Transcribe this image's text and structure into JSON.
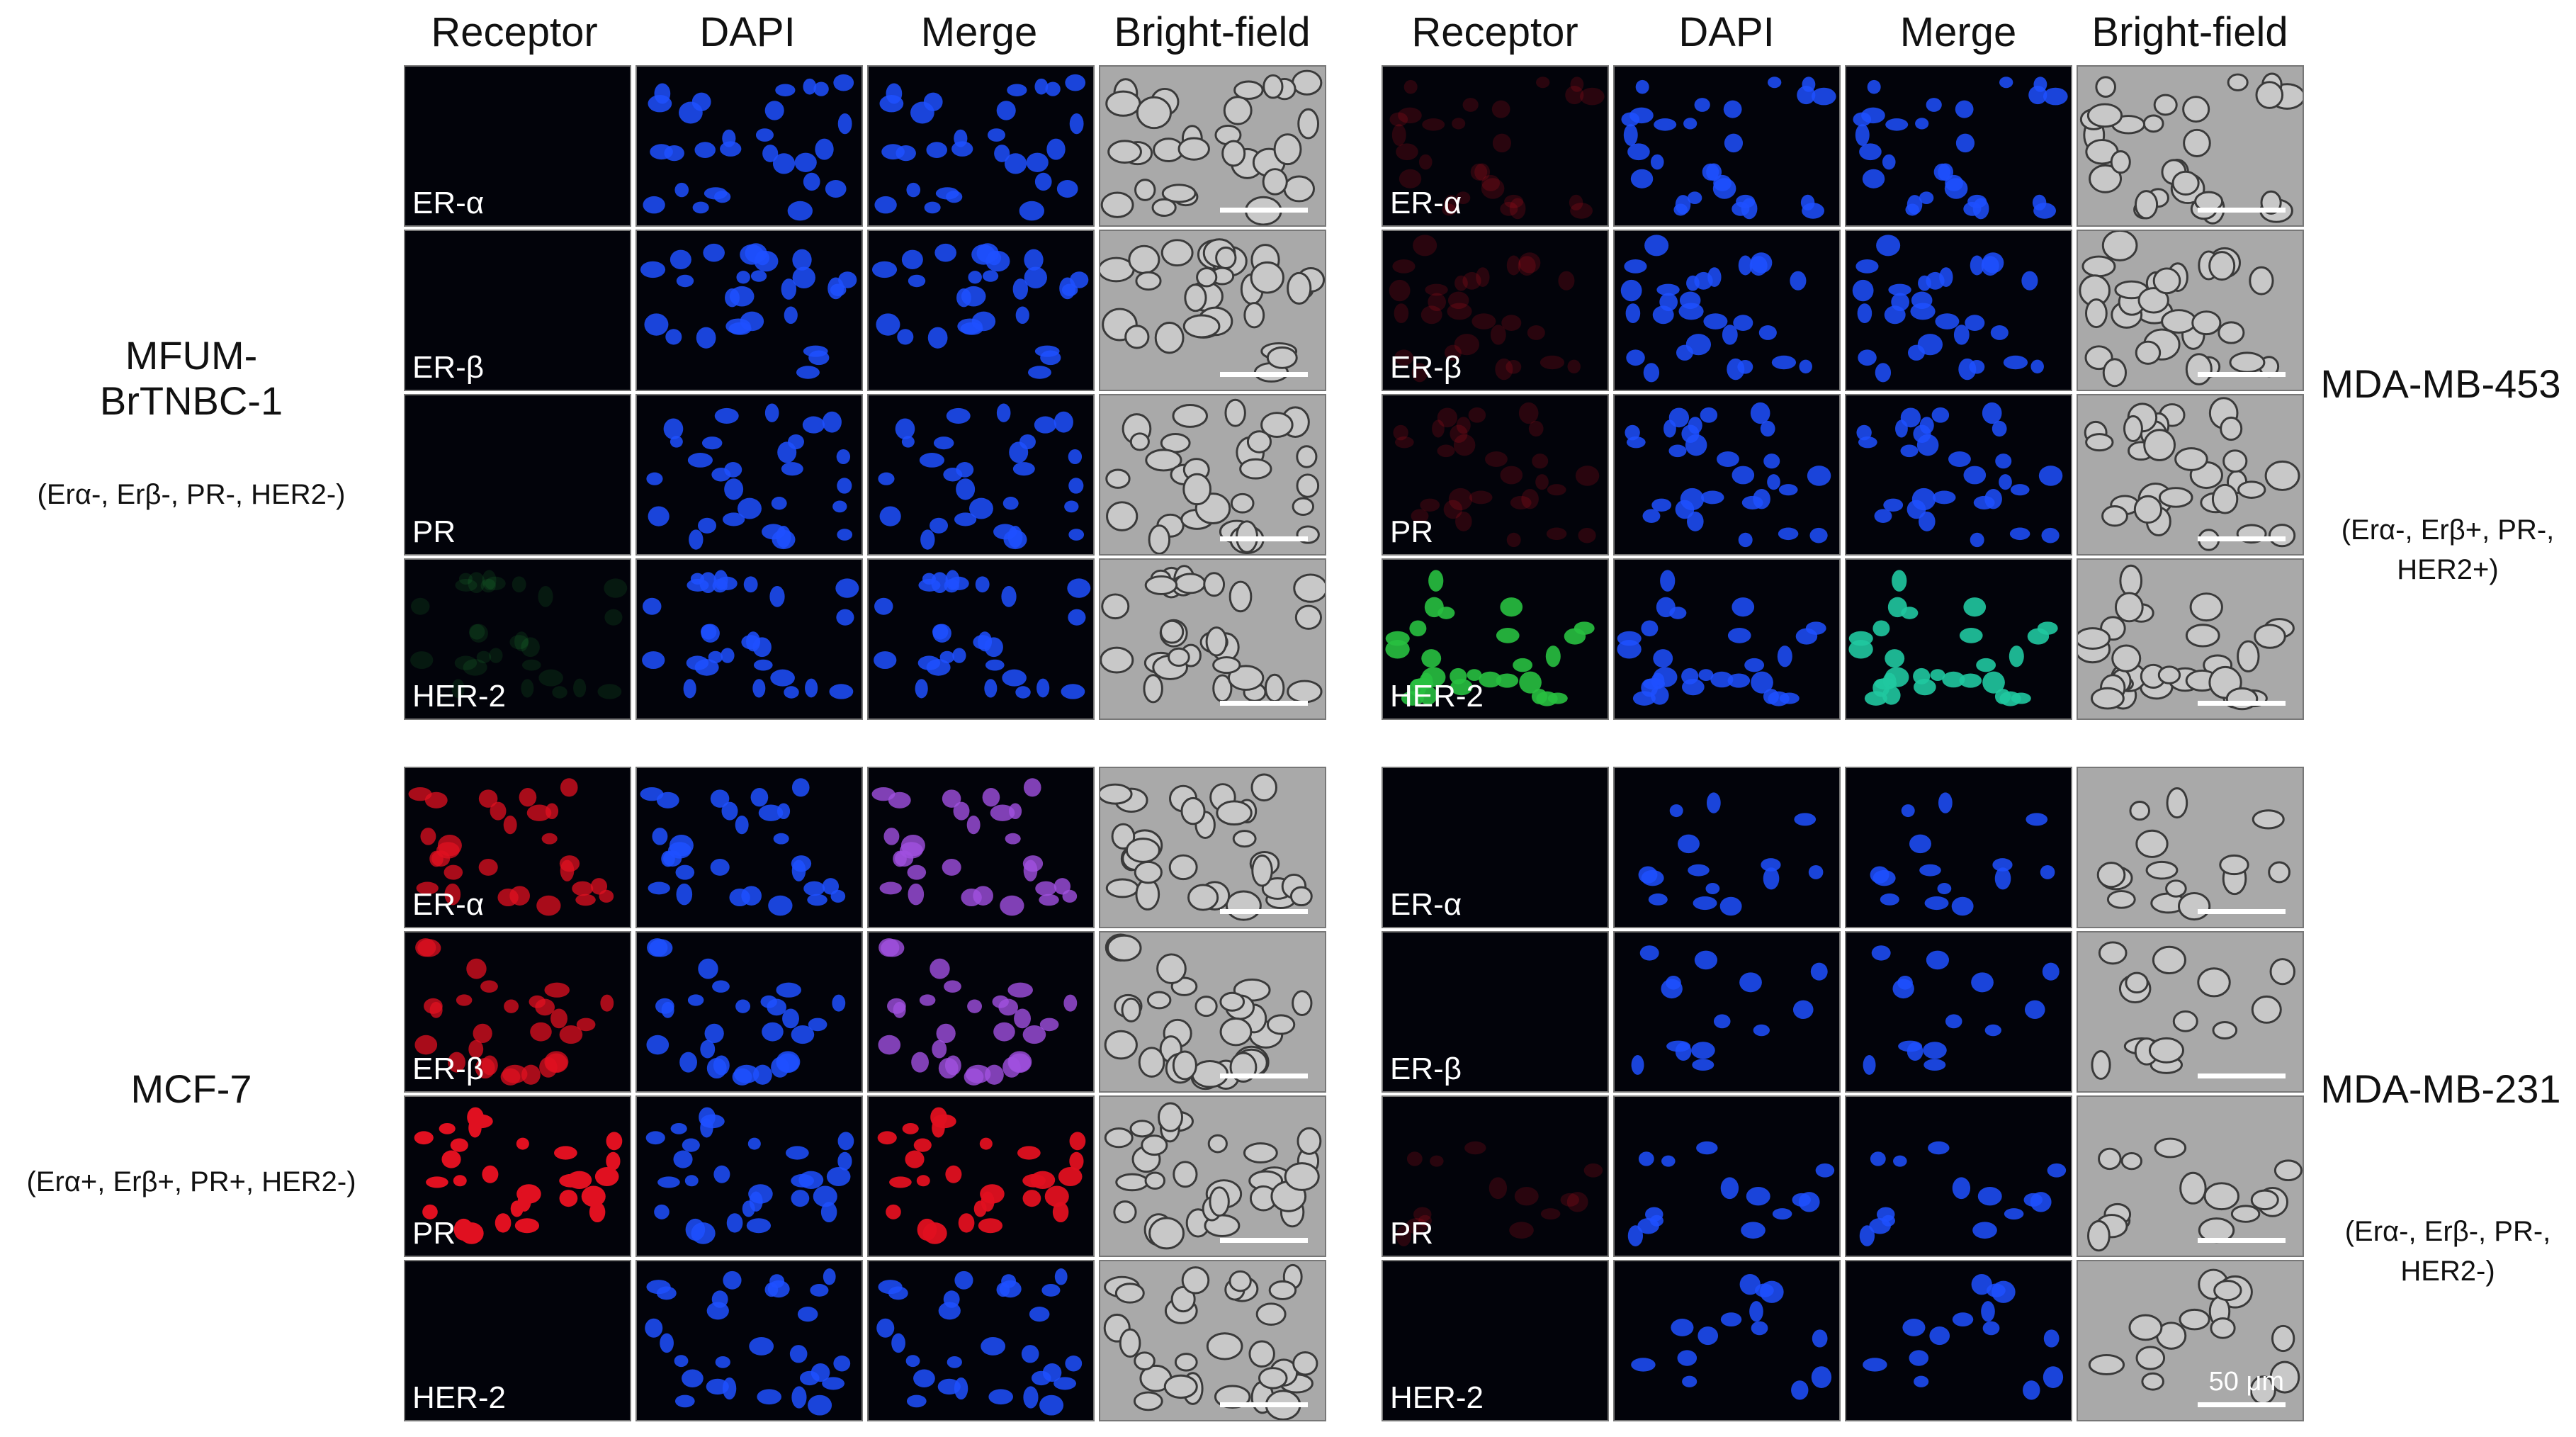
{
  "columns": [
    "Receptor",
    "DAPI",
    "Merge",
    "Bright-field"
  ],
  "quadrants": [
    {
      "id": "tl",
      "cell_line": "MFUM-\nBrTNBC-1",
      "status": "(Erα-, Erβ-, PR-, HER2-)",
      "receptors": [
        "ER-α",
        "ER-β",
        "PR",
        "HER-2"
      ],
      "stains": [
        "none",
        "none",
        "none",
        "faint-green"
      ]
    },
    {
      "id": "tr",
      "cell_line": "MDA-MB-453",
      "status": "(Erα-, Erβ+, PR-,\nHER2+)",
      "receptors": [
        "ER-α",
        "ER-β",
        "PR",
        "HER-2"
      ],
      "stains": [
        "faint-red",
        "faint-red",
        "faint-red",
        "green"
      ]
    },
    {
      "id": "bl",
      "cell_line": "MCF-7",
      "status": "(Erα+, Erβ+, PR+, HER2-)",
      "receptors": [
        "ER-α",
        "ER-β",
        "PR",
        "HER-2"
      ],
      "stains": [
        "red",
        "red",
        "bright-red",
        "none"
      ]
    },
    {
      "id": "br",
      "cell_line": "MDA-MB-231",
      "status": "(Erα-, Erβ-, PR-,\nHER2-)",
      "receptors": [
        "ER-α",
        "ER-β",
        "PR",
        "HER-2"
      ],
      "stains": [
        "none",
        "none",
        "faint-red",
        "none"
      ]
    }
  ],
  "scale_bar_label": "50 μm",
  "colors": {
    "dapi": "#1e50ff",
    "red": "#e01020",
    "green": "#28c040",
    "merge_purple": "#a050e0",
    "background": "#02030a",
    "brightfield": "#a9a9a9"
  }
}
